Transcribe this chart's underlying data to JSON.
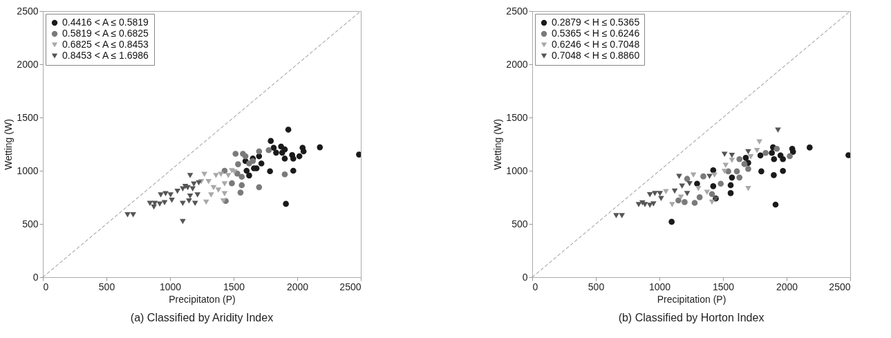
{
  "chart_data": [
    {
      "type": "scatter",
      "title": "(a) Classified by Aridity Index",
      "xlabel": "Precipitaton (P)",
      "ylabel": "Wetting (W)",
      "xlim": [
        0,
        2500
      ],
      "ylim": [
        0,
        2500
      ],
      "xticks": [
        0,
        500,
        1000,
        1500,
        2000,
        2500
      ],
      "yticks": [
        0,
        500,
        1000,
        1500,
        2000,
        2500
      ],
      "grid": false,
      "legend": "top left",
      "series": [
        {
          "name": "0.4416 < A ≤ 0.5819",
          "color": "#1a1a1a",
          "marker": "circle",
          "x": [
            1930,
            1792,
            1815,
            1873,
            1902,
            1834,
            1882,
            1960,
            1969,
            1902,
            2017,
            2042,
            2050,
            2178,
            2486,
            1786,
            1969,
            1911,
            1700,
            1651,
            1680,
            1602,
            1622,
            1718,
            1593,
            1660
          ],
          "values": [
            1386,
            1280,
            1216,
            1227,
            1200,
            1170,
            1170,
            1148,
            1114,
            1114,
            1136,
            1216,
            1182,
            1220,
            1152,
            995,
            1000,
            689,
            1136,
            1114,
            1023,
            1000,
            955,
            1068,
            1091,
            1023
          ]
        },
        {
          "name": "0.5819 < A ≤ 0.6825",
          "color": "#7a7a7a",
          "marker": "circle",
          "x": [
            1515,
            1573,
            1535,
            1700,
            1776,
            1902,
            1700,
            1564,
            1554,
            1564,
            1529,
            1486,
            1429,
            1622,
            1651,
            1593,
            1438
          ],
          "values": [
            1159,
            1159,
            1061,
            1182,
            1193,
            966,
            845,
            864,
            795,
            943,
            973,
            882,
            1000,
            1068,
            1091,
            1136,
            716
          ]
        },
        {
          "name": "0.6825 < A ≤ 0.8453",
          "color": "#a8a8a8",
          "marker": "triangle",
          "x": [
            1270,
            1303,
            1284,
            1323,
            1342,
            1380,
            1361,
            1400,
            1429,
            1429,
            1458,
            1486,
            1419,
            1506,
            1245
          ],
          "values": [
            966,
            898,
            705,
            773,
            841,
            818,
            955,
            966,
            877,
            784,
            955,
            1000,
            716,
            989,
            898
          ]
        },
        {
          "name": "0.8453 < A ≤ 1.6986",
          "color": "#555555",
          "marker": "triangle",
          "x": [
            666,
            710,
            842,
            880,
            919,
            957,
            873,
            927,
            965,
            1004,
            1058,
            1014,
            1100,
            1100,
            1158,
            1139,
            1178,
            1158,
            1216,
            1197,
            1226,
            1187,
            1120,
            1149,
            1100
          ],
          "values": [
            586,
            586,
            693,
            693,
            686,
            700,
            659,
            773,
            784,
            773,
            807,
            723,
            693,
            523,
            955,
            841,
            830,
            761,
            773,
            693,
            886,
            875,
            852,
            716,
            830
          ]
        },
        {
          "type": "line",
          "color": "#888888",
          "line_style": "dashed",
          "x": [
            0,
            2500
          ],
          "values": [
            0,
            2500
          ]
        }
      ]
    },
    {
      "type": "scatter",
      "title": "(b) Classified by Horton Index",
      "xlabel": "Precipitation (P)",
      "ylabel": "Wetting (W)",
      "xlim": [
        0,
        2500
      ],
      "ylim": [
        0,
        2500
      ],
      "xticks": [
        0,
        500,
        1000,
        1500,
        2000,
        2500
      ],
      "yticks": [
        0,
        500,
        1000,
        1500,
        2000,
        2500
      ],
      "grid": false,
      "legend": "top left",
      "series": [
        {
          "name": "0.2879 < H ≤ 0.5365",
          "color": "#1a1a1a",
          "marker": "circle",
          "x": [
            1096,
            1913,
            1801,
            1971,
            1899,
            1893,
            1901,
            1794,
            1884,
            1952,
            1971,
            2044,
            2050,
            2181,
            2486,
            1560,
            1560,
            1570,
            1423,
            1423,
            1698,
            1679,
            1443,
            1296
          ],
          "values": [
            520,
            682,
            994,
            998,
            959,
            1220,
            1109,
            1144,
            1167,
            1144,
            1109,
            1206,
            1178,
            1218,
            1146,
            790,
            864,
            936,
            855,
            1005,
            1074,
            1121,
            739,
            878
          ]
        },
        {
          "name": "0.5365 < H ≤ 0.6246",
          "color": "#7a7a7a",
          "marker": "circle",
          "x": [
            1923,
            1835,
            2025,
            1629,
            1629,
            1668,
            1698,
            1609,
            1218,
            1277,
            1198,
            1149,
            1316,
            1413,
            1482,
            1541,
            1345
          ],
          "values": [
            1206,
            1167,
            1137,
            936,
            1109,
            1063,
            1017,
            994,
            924,
            698,
            705,
            721,
            751,
            781,
            878,
            994,
            947
          ]
        },
        {
          "name": "0.6246 < H ≤ 0.7048",
          "color": "#a8a8a8",
          "marker": "triangle",
          "x": [
            1786,
            1767,
            1718,
            1698,
            1521,
            1570,
            1512,
            1267,
            1306,
            1374,
            1413,
            1100,
            1051,
            1169,
            1433
          ],
          "values": [
            1271,
            1190,
            1132,
            832,
            1051,
            1097,
            994,
            959,
            832,
            797,
            705,
            682,
            804,
            751,
            959
          ]
        },
        {
          "name": "0.7048 < H ≤ 0.8860",
          "color": "#555555",
          "marker": "triangle",
          "x": [
            660,
            705,
            837,
            886,
            925,
            953,
            866,
            925,
            964,
            1013,
            1004,
            1155,
            1120,
            1178,
            1218,
            1237,
            1512,
            1570,
            1698,
            1932,
            1443,
            1394
          ],
          "values": [
            578,
            578,
            682,
            682,
            675,
            689,
            698,
            774,
            786,
            739,
            786,
            947,
            809,
            855,
            786,
            878,
            1155,
            1144,
            1178,
            1382,
            735,
            947
          ]
        },
        {
          "type": "line",
          "color": "#888888",
          "line_style": "dashed",
          "x": [
            0,
            2500
          ],
          "values": [
            0,
            2500
          ]
        }
      ]
    }
  ]
}
